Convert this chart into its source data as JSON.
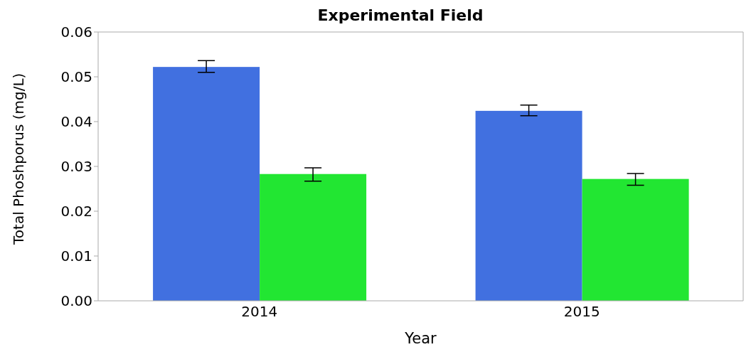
{
  "chart_data": {
    "type": "bar",
    "title": "Experimental Field",
    "xlabel": "Year",
    "ylabel": "Total Phoshporus (mg/L)",
    "categories": [
      "2014",
      "2015"
    ],
    "series": [
      {
        "color": "#4170e0",
        "values": [
          0.0522,
          0.0424
        ],
        "errors": [
          [
            0.051,
            0.0536
          ],
          [
            0.0413,
            0.0437
          ]
        ]
      },
      {
        "color": "#22e632",
        "values": [
          0.0283,
          0.0272
        ],
        "errors": [
          [
            0.0267,
            0.0297
          ],
          [
            0.0258,
            0.0284
          ]
        ]
      }
    ],
    "ylim": [
      0,
      0.06
    ],
    "yticks": [
      {
        "value": 0,
        "label": "0.00"
      },
      {
        "value": 0.01,
        "label": "0.01"
      },
      {
        "value": 0.02,
        "label": "0.02"
      },
      {
        "value": 0.03,
        "label": "0.03"
      },
      {
        "value": 0.04,
        "label": "0.04"
      },
      {
        "value": 0.05,
        "label": "0.05"
      },
      {
        "value": 0.06,
        "label": "0.06"
      }
    ],
    "grid": false,
    "legend": false
  }
}
